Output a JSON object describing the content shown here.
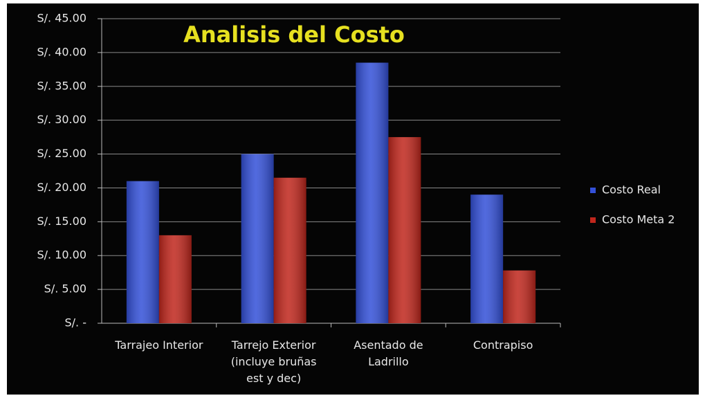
{
  "chart_data": {
    "type": "bar",
    "title": "Analisis del Costo",
    "categories": [
      "Tarrajeo Interior",
      "Tarrejo Exterior (incluye bruñas est y dec)",
      "Asentado de Ladrillo",
      "Contrapiso"
    ],
    "series": [
      {
        "name": "Costo Real",
        "color": "#3350d8",
        "values": [
          21,
          25,
          38.5,
          19
        ]
      },
      {
        "name": "Costo Meta 2",
        "color": "#c0261c",
        "values": [
          13,
          21.5,
          27.5,
          7.8
        ]
      }
    ],
    "ylim": [
      0,
      45
    ],
    "yticks": [
      {
        "value": 0,
        "label": "S/. -"
      },
      {
        "value": 5,
        "label": "S/. 5.00"
      },
      {
        "value": 10,
        "label": "S/. 10.00"
      },
      {
        "value": 15,
        "label": "S/. 15.00"
      },
      {
        "value": 20,
        "label": "S/. 20.00"
      },
      {
        "value": 25,
        "label": "S/. 25.00"
      },
      {
        "value": 30,
        "label": "S/. 30.00"
      },
      {
        "value": 35,
        "label": "S/. 35.00"
      },
      {
        "value": 40,
        "label": "S/. 40.00"
      },
      {
        "value": 45,
        "label": "S/. 45.00"
      }
    ],
    "grid": true,
    "legend": "right"
  }
}
